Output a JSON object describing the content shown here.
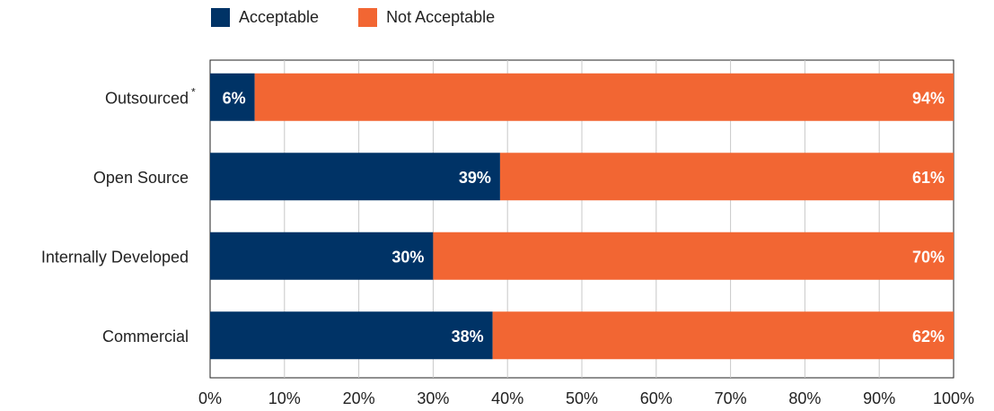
{
  "chart_data": {
    "type": "bar",
    "orientation": "horizontal",
    "stacked": true,
    "categories": [
      "Outsourced",
      "Open Source",
      "Internally Developed",
      "Commercial"
    ],
    "category_footnote_marks": [
      "*",
      "",
      "",
      ""
    ],
    "series": [
      {
        "name": "Acceptable",
        "color": "#003366",
        "values": [
          6,
          39,
          30,
          38
        ],
        "labels": [
          "6%",
          "39%",
          "30%",
          "38%"
        ]
      },
      {
        "name": "Not Acceptable",
        "color": "#f26633",
        "values": [
          94,
          61,
          70,
          62
        ],
        "labels": [
          "94%",
          "61%",
          "70%",
          "62%"
        ]
      }
    ],
    "xlim": [
      0,
      100
    ],
    "x_ticks": [
      "0%",
      "10%",
      "20%",
      "30%",
      "40%",
      "50%",
      "60%",
      "70%",
      "80%",
      "90%",
      "100%"
    ],
    "title": "",
    "xlabel": "",
    "ylabel": "",
    "grid": true,
    "legend_position": "top-left"
  }
}
